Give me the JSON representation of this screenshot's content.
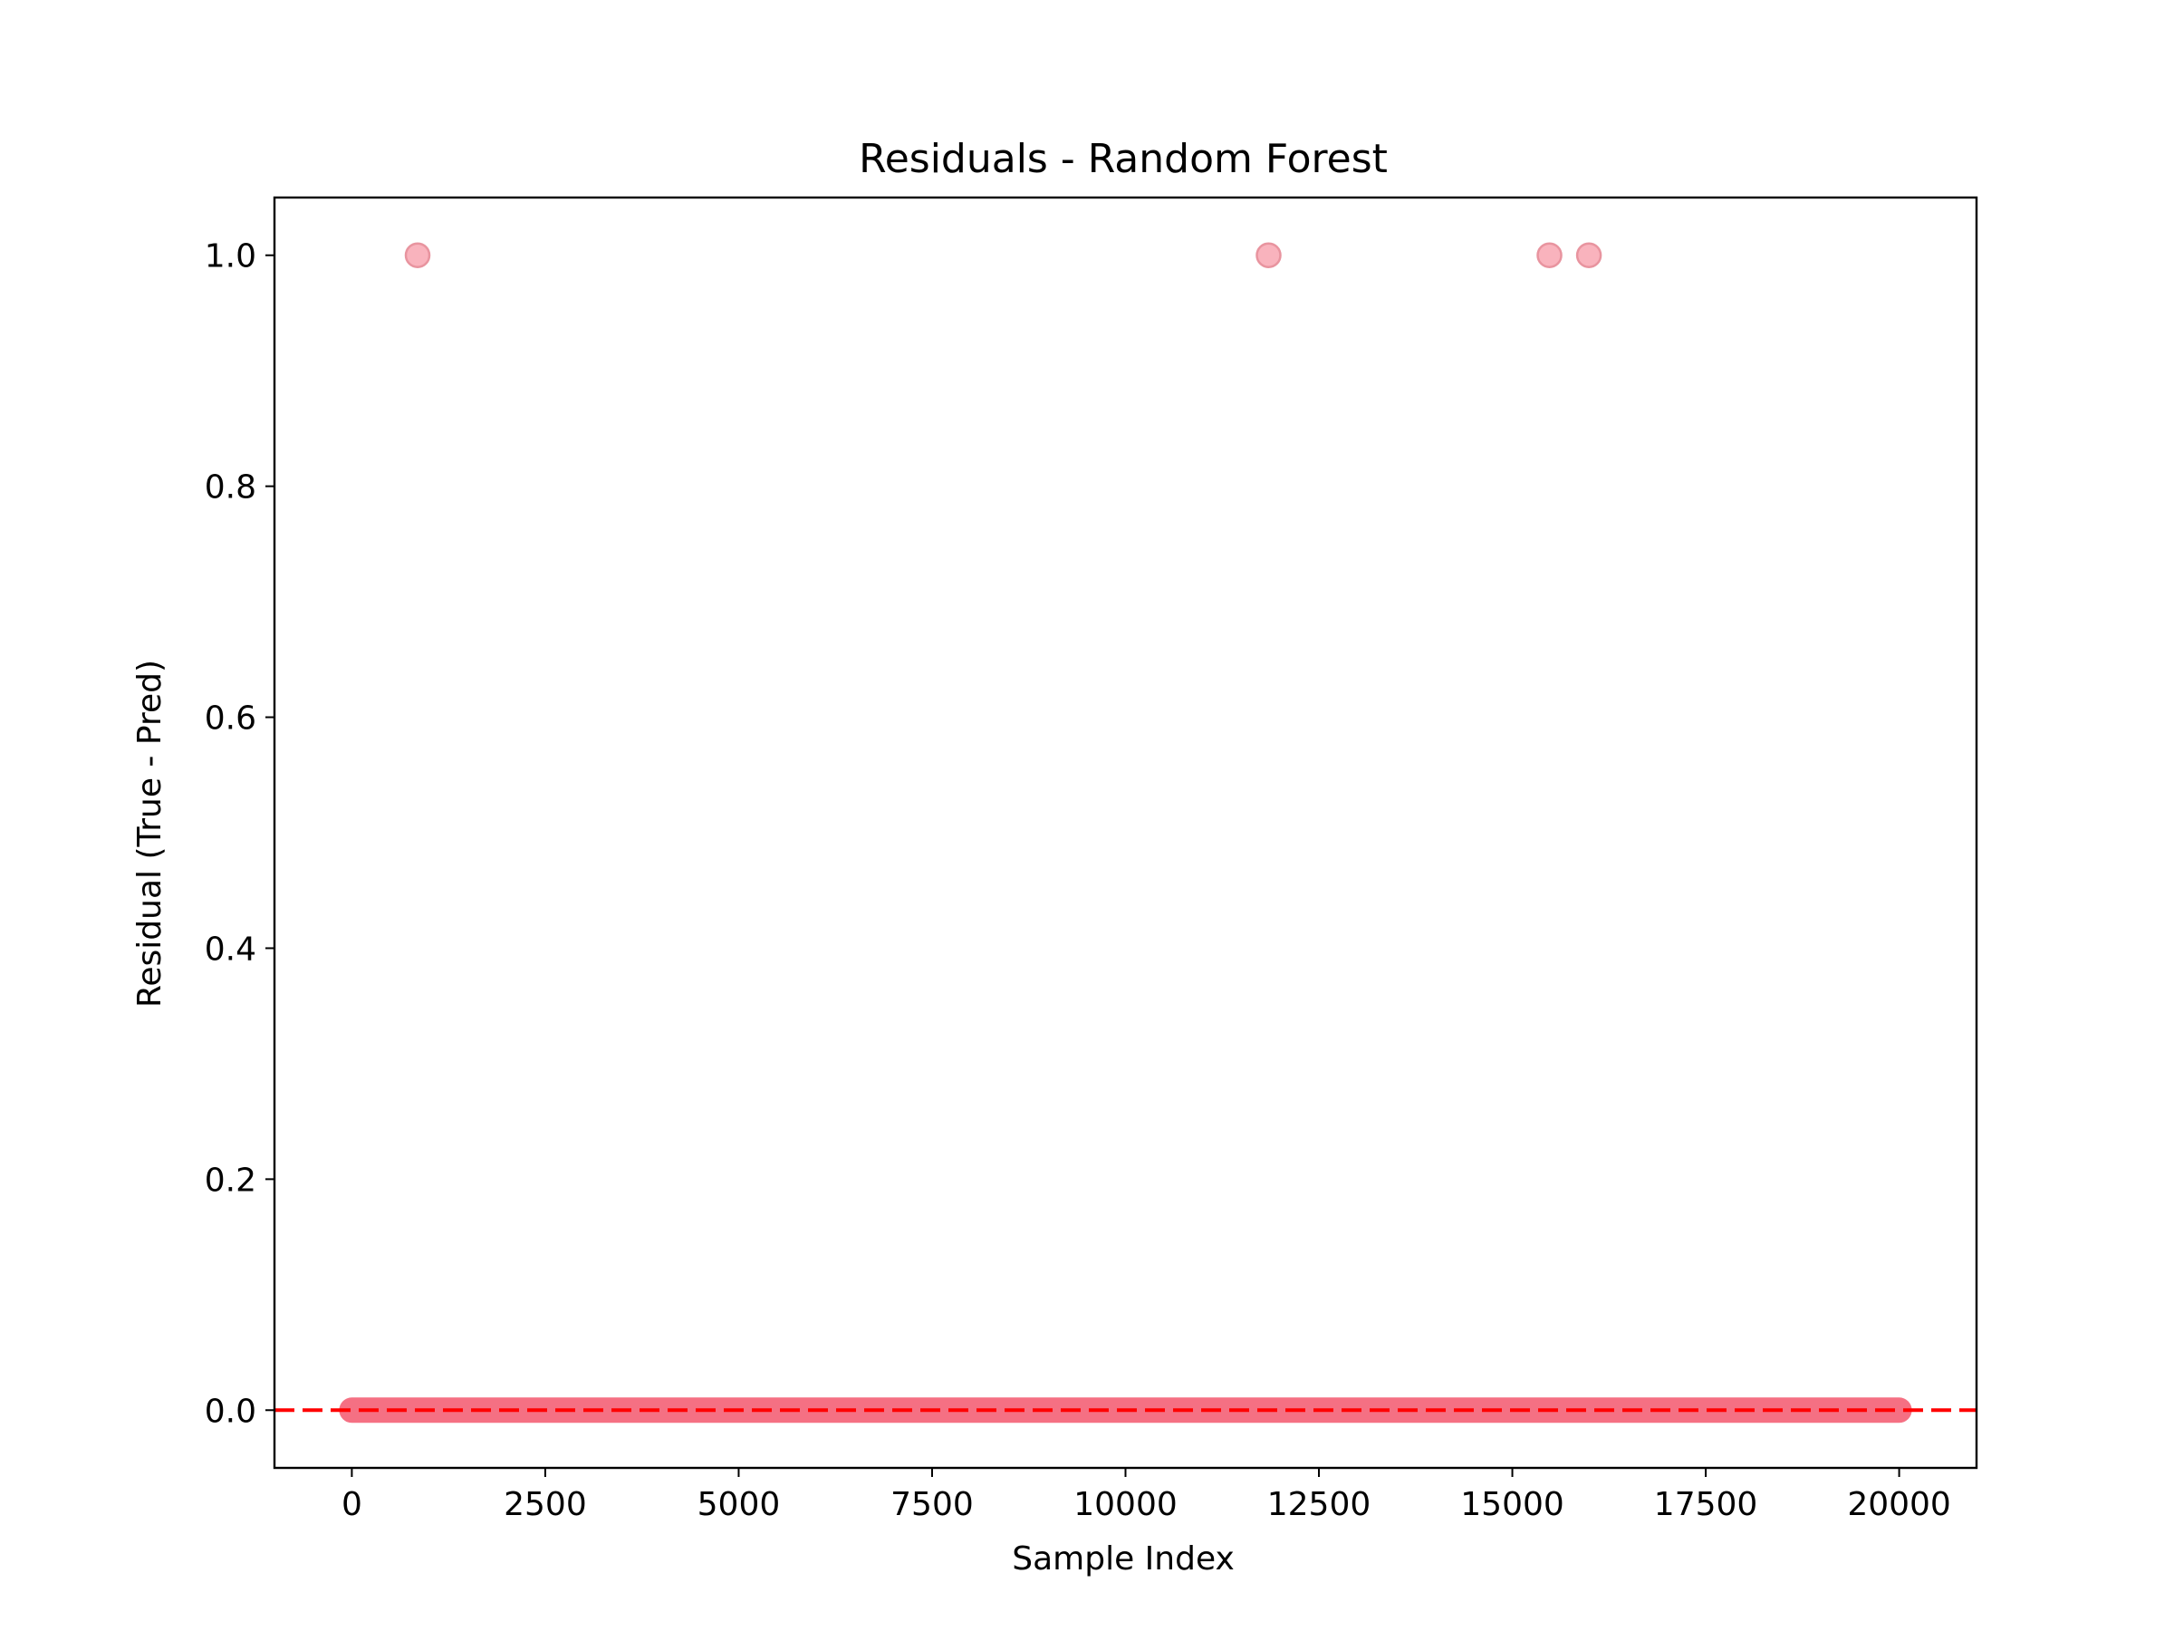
{
  "chart_data": {
    "type": "scatter",
    "title": "Residuals - Random Forest",
    "xlabel": "Sample Index",
    "ylabel": "Residual (True - Pred)",
    "xlim": [
      -1000,
      21000
    ],
    "ylim": [
      -0.05,
      1.05
    ],
    "x_ticks": [
      0,
      2500,
      5000,
      7500,
      10000,
      12500,
      15000,
      17500,
      20000
    ],
    "x_tick_labels": [
      "0",
      "2500",
      "5000",
      "7500",
      "10000",
      "12500",
      "15000",
      "17500",
      "20000"
    ],
    "y_ticks": [
      0.0,
      0.2,
      0.4,
      0.6,
      0.8,
      1.0
    ],
    "y_tick_labels": [
      "0.0",
      "0.2",
      "0.4",
      "0.6",
      "0.8",
      "1.0"
    ],
    "grid": false,
    "series": [
      {
        "marker_color": "#f4687c",
        "marker_edge_color": "#e8949f",
        "marker_alpha": 0.5,
        "points": [
          {
            "x": 850,
            "y": 1.0
          },
          {
            "x": 11850,
            "y": 1.0
          },
          {
            "x": 15480,
            "y": 1.0
          },
          {
            "x": 15990,
            "y": 1.0
          }
        ],
        "dense_band": {
          "x_start": 0,
          "x_end": 20000,
          "y": 0.0
        }
      }
    ],
    "reference_line": {
      "y": 0.0,
      "color": "#ff0000",
      "style": "dashed"
    }
  }
}
